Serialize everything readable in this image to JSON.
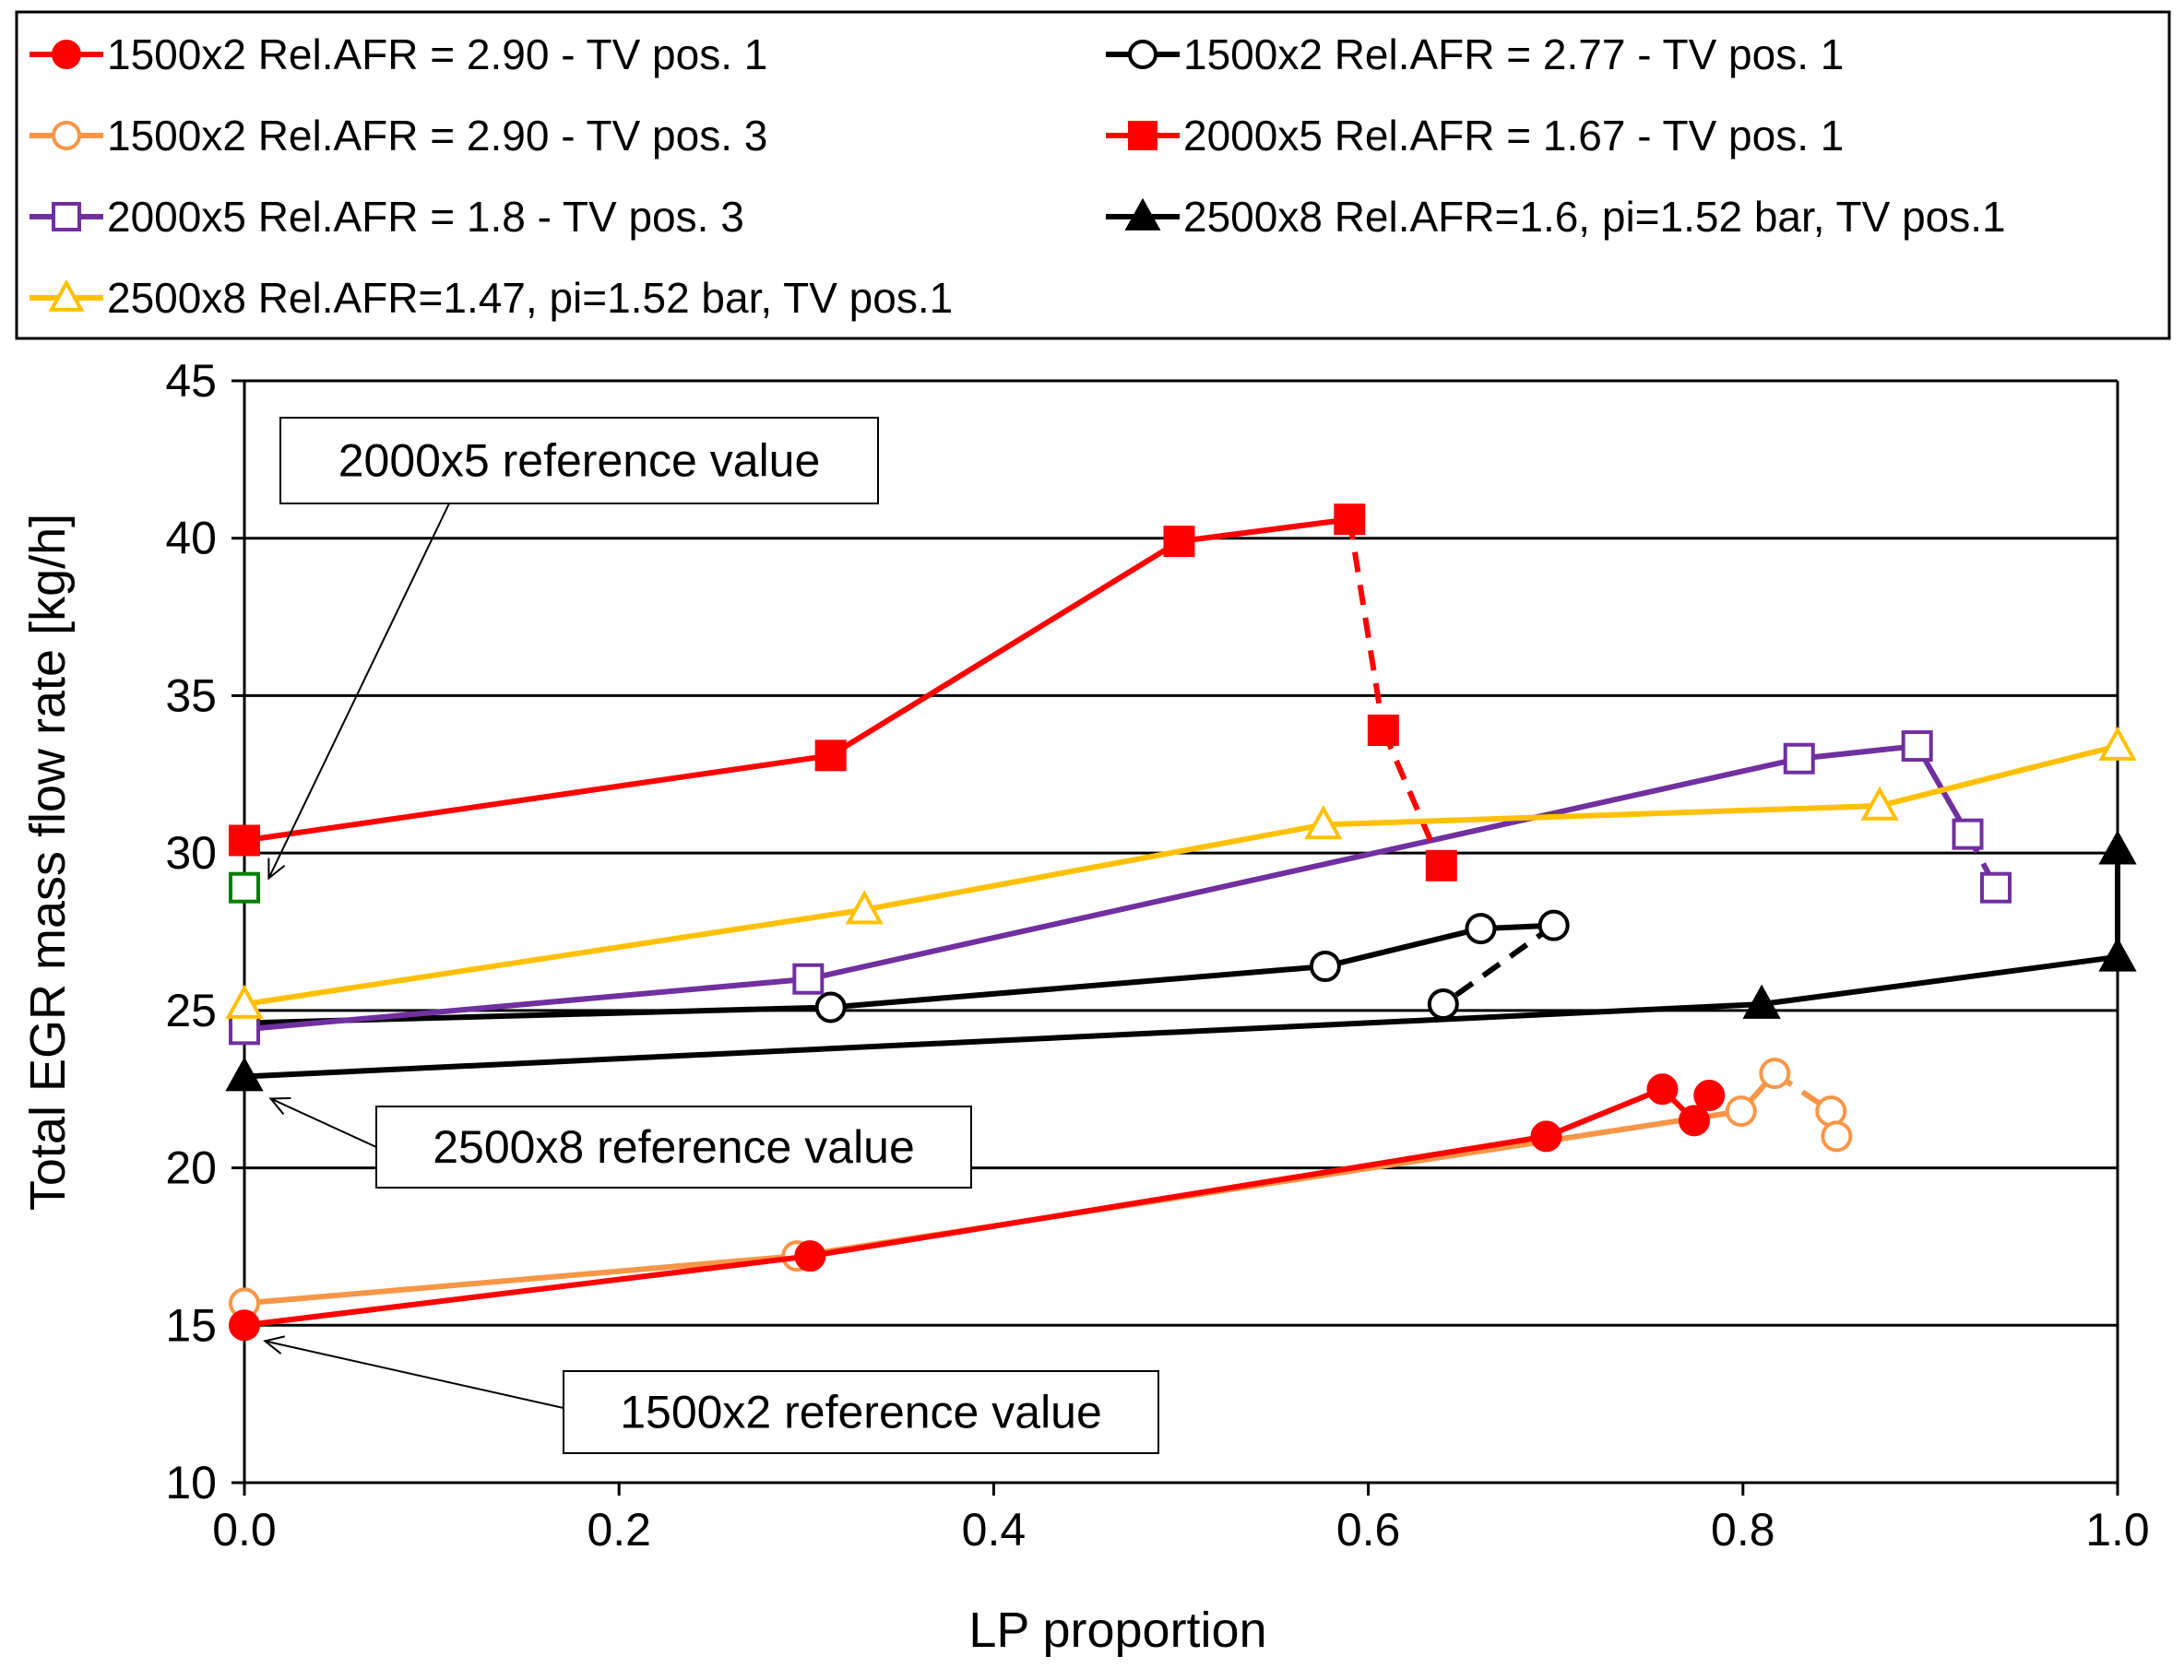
{
  "chart_data": {
    "type": "line",
    "title": "",
    "xlabel": "LP proportion",
    "ylabel": "Total EGR mass flow rate [kg/h]",
    "xlim": [
      0,
      1
    ],
    "ylim": [
      10,
      45
    ],
    "xticks": [
      "0.0",
      "0.2",
      "0.4",
      "0.6",
      "0.8",
      "1.0"
    ],
    "yticks": [
      "10",
      "15",
      "20",
      "25",
      "30",
      "35",
      "40",
      "45"
    ],
    "grid": "horizontal",
    "legend_position": "top",
    "series": [
      {
        "name": "1500x2 Rel.AFR = 2.90 - TV pos. 1",
        "color": "#ff0000",
        "marker": "circle-filled",
        "x": [
          0.0,
          0.302,
          0.695,
          0.757,
          0.774,
          0.782
        ],
        "y": [
          15.0,
          17.2,
          21.0,
          22.5,
          21.5,
          22.3
        ]
      },
      {
        "name": "1500x2 Rel.AFR = 2.90 - TV pos. 3",
        "color": "#f79646",
        "marker": "circle-open",
        "x": [
          0.0,
          0.295,
          0.799,
          0.817,
          0.847,
          0.85
        ],
        "y": [
          15.7,
          17.2,
          21.8,
          23.0,
          21.8,
          21.0
        ],
        "dashed_from": 3
      },
      {
        "name": "2000x5 Rel.AFR = 1.8 - TV pos. 3",
        "color": "#7030a0",
        "marker": "square-open",
        "x": [
          0.0,
          0.301,
          0.83,
          0.893,
          0.92,
          0.935
        ],
        "y": [
          24.4,
          26.0,
          33.0,
          33.4,
          30.6,
          28.9
        ],
        "dashed_from": 4
      },
      {
        "name": "2500x8 Rel.AFR=1.47, pi=1.52 bar, TV pos.1",
        "color": "#ffc000",
        "marker": "triangle-open",
        "x": [
          0.0,
          0.331,
          0.576,
          0.873,
          1.0
        ],
        "y": [
          25.2,
          28.2,
          30.9,
          31.5,
          33.4
        ]
      },
      {
        "name": "1500x2 Rel.AFR = 2.77 - TV pos. 1",
        "color": "#000000",
        "marker": "circle-open",
        "x": [
          0.0,
          0.313,
          0.577,
          0.66,
          0.699,
          0.64
        ],
        "y": [
          24.6,
          25.1,
          26.4,
          27.6,
          27.7,
          25.2
        ],
        "dashed_from": 4
      },
      {
        "name": "2000x5 Rel.AFR = 1.67 - TV pos. 1",
        "color": "#ff0000",
        "marker": "square-filled",
        "x": [
          0.0,
          0.313,
          0.499,
          0.59,
          0.608,
          0.639
        ],
        "y": [
          30.4,
          33.1,
          39.9,
          40.6,
          33.9,
          29.6
        ],
        "dashed_from": 3
      },
      {
        "name": "2500x8 Rel.AFR=1.6, pi=1.52 bar, TV pos.1",
        "color": "#000000",
        "marker": "triangle-filled",
        "x": [
          0.0,
          0.81,
          1.0,
          1.0
        ],
        "y": [
          22.9,
          25.2,
          26.7,
          30.1
        ]
      }
    ],
    "extra_points": [
      {
        "name": "2000x5 reference point",
        "color": "#008000",
        "marker": "square-open",
        "x": 0.0,
        "y": 28.9
      }
    ],
    "annotations": [
      {
        "text": "2000x5 reference value",
        "target_x": 0.013,
        "target_y": 29.2
      },
      {
        "text": "2500x8 reference value",
        "target_x": 0.014,
        "target_y": 22.2
      },
      {
        "text": "1500x2 reference value",
        "target_x": 0.011,
        "target_y": 14.5
      }
    ]
  },
  "legend": {
    "items": [
      "1500x2 Rel.AFR = 2.90 - TV pos. 1",
      "1500x2 Rel.AFR = 2.77 - TV pos. 1",
      "1500x2 Rel.AFR = 2.90 - TV pos. 3",
      "2000x5 Rel.AFR = 1.67 - TV pos. 1",
      "2000x5 Rel.AFR = 1.8 - TV pos. 3",
      "2500x8 Rel.AFR=1.6, pi=1.52 bar, TV pos.1",
      "2500x8 Rel.AFR=1.47, pi=1.52 bar, TV pos.1"
    ]
  }
}
